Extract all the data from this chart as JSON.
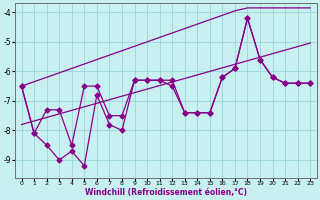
{
  "xlabel": "Windchill (Refroidissement éolien,°C)",
  "background_color": "#c8f0f0",
  "line_color": "#880088",
  "grid_color": "#90d0d8",
  "x": [
    0,
    1,
    2,
    3,
    4,
    5,
    6,
    7,
    8,
    9,
    10,
    11,
    12,
    13,
    14,
    15,
    16,
    17,
    18,
    19,
    20,
    21,
    22,
    23
  ],
  "ylim": [
    -9.6,
    -3.7
  ],
  "xlim": [
    -0.5,
    23.5
  ],
  "series": {
    "upper_trend": [
      -6.5,
      -6.35,
      -6.2,
      -6.05,
      -5.9,
      -5.75,
      -5.6,
      -5.45,
      -5.3,
      -5.15,
      -5.0,
      -4.85,
      -4.7,
      -4.55,
      -4.4,
      -4.25,
      -4.1,
      -3.95,
      -3.85,
      -3.85,
      -3.85,
      -3.85,
      -3.85,
      -3.85
    ],
    "lower_trend": [
      -7.8,
      -7.68,
      -7.56,
      -7.44,
      -7.32,
      -7.2,
      -7.08,
      -6.96,
      -6.84,
      -6.72,
      -6.6,
      -6.48,
      -6.36,
      -6.24,
      -6.12,
      -6.0,
      -5.88,
      -5.76,
      -5.64,
      -5.52,
      -5.4,
      -5.28,
      -5.16,
      -5.04
    ],
    "zigzag1": [
      -6.5,
      -8.1,
      -7.3,
      -7.3,
      -8.5,
      -6.5,
      -6.5,
      -7.5,
      -7.5,
      -6.3,
      -6.3,
      -6.3,
      -6.3,
      -7.4,
      -7.4,
      -7.4,
      -6.2,
      -5.9,
      -4.2,
      -5.6,
      -6.2,
      -6.4,
      -6.4,
      -6.4
    ],
    "zigzag2": [
      -6.5,
      -8.1,
      -8.5,
      -9.0,
      -8.7,
      -9.2,
      -6.8,
      -7.8,
      -8.0,
      -6.3,
      -6.3,
      -6.3,
      -6.5,
      -7.4,
      -7.4,
      -7.4,
      -6.2,
      -5.9,
      -4.2,
      -5.6,
      -6.2,
      -6.4,
      -6.4,
      -6.4
    ]
  },
  "yticks": [
    -9,
    -8,
    -7,
    -6,
    -5,
    -4
  ],
  "xticks": [
    0,
    1,
    2,
    3,
    4,
    5,
    6,
    7,
    8,
    9,
    10,
    11,
    12,
    13,
    14,
    15,
    16,
    17,
    18,
    19,
    20,
    21,
    22,
    23
  ]
}
